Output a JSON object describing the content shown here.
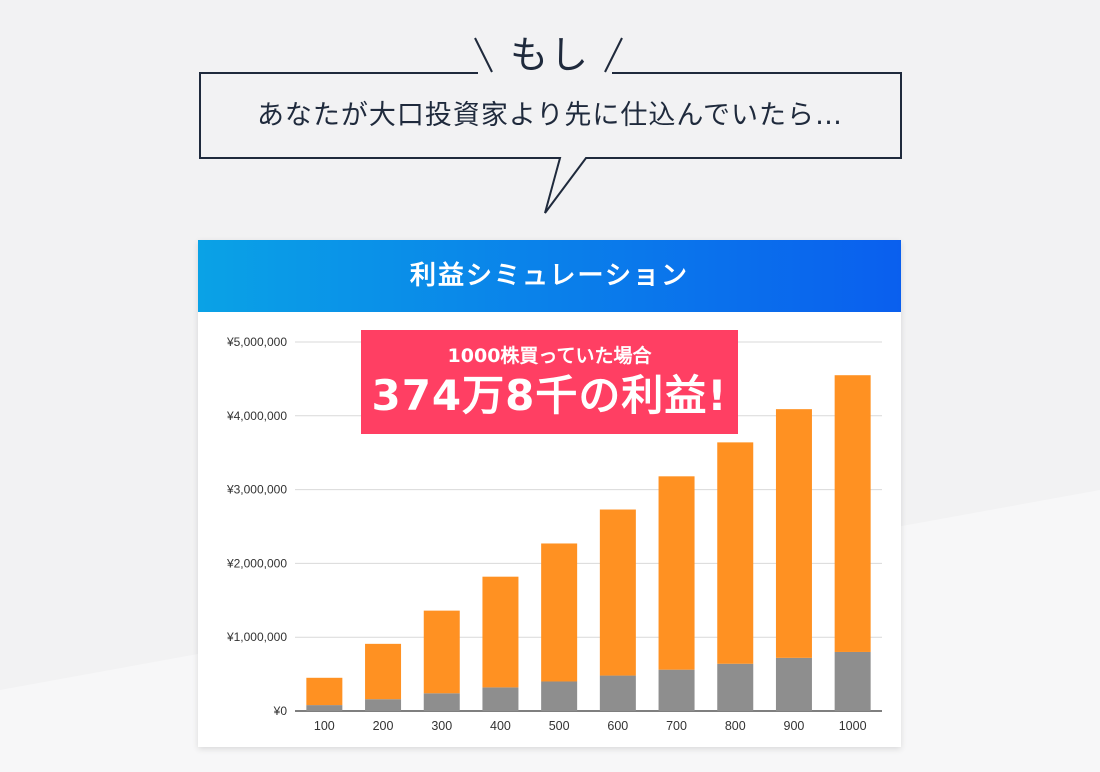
{
  "callout": {
    "lead": "もし",
    "text": "あなたが大口投資家より先に仕込んでいたら…"
  },
  "card": {
    "header": "利益シミュレーション"
  },
  "badge": {
    "line1": "1000株買っていた場合",
    "line2": "374万8千の利益!"
  },
  "colors": {
    "profit": "#ff9122",
    "cost": "#8e8e8e",
    "badge": "#ff3f63",
    "header_start": "#0aa2e6",
    "header_end": "#0a5fee"
  },
  "chart_data": {
    "type": "bar",
    "stacked": true,
    "categories": [
      "100",
      "200",
      "300",
      "400",
      "500",
      "600",
      "700",
      "800",
      "900",
      "1000"
    ],
    "series": [
      {
        "values": [
          80000,
          160000,
          240000,
          320000,
          400000,
          480000,
          560000,
          640000,
          720000,
          800000
        ]
      },
      {
        "values": [
          370000,
          750000,
          1120000,
          1500000,
          1870000,
          2250000,
          2620000,
          3000000,
          3370000,
          3750000
        ]
      }
    ],
    "ylim": [
      0,
      5000000
    ],
    "yticks": [
      0,
      1000000,
      2000000,
      3000000,
      4000000,
      5000000
    ],
    "ytick_labels": [
      "¥0",
      "¥1,000,000",
      "¥2,000,000",
      "¥3,000,000",
      "¥4,000,000",
      "¥5,000,000"
    ],
    "grid": true,
    "title": "",
    "xlabel": "",
    "ylabel": ""
  }
}
